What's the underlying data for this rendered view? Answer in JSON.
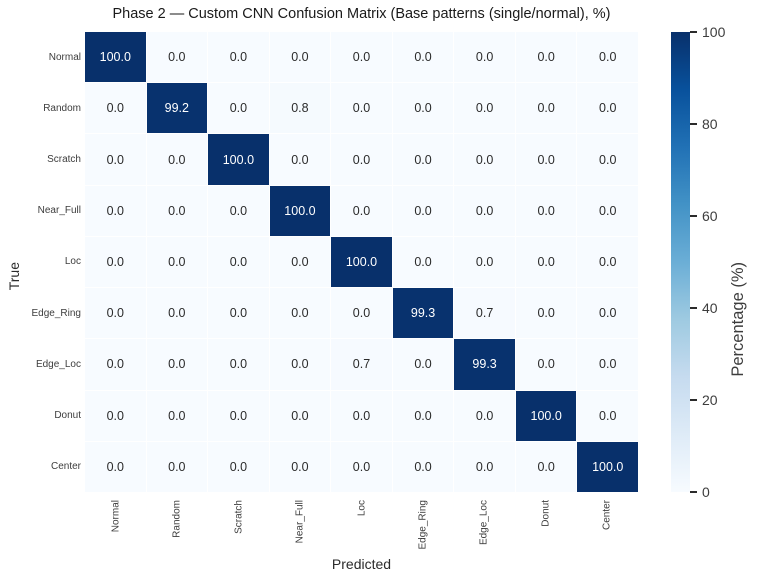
{
  "chart_data": {
    "type": "heatmap",
    "title": "Phase 2 — Custom CNN Confusion Matrix (Base patterns (single/normal), %)",
    "xlabel": "Predicted",
    "ylabel": "True",
    "x_categories": [
      "Normal",
      "Random",
      "Scratch",
      "Near_Full",
      "Loc",
      "Edge_Ring",
      "Edge_Loc",
      "Donut",
      "Center"
    ],
    "y_categories": [
      "Normal",
      "Random",
      "Scratch",
      "Near_Full",
      "Loc",
      "Edge_Ring",
      "Edge_Loc",
      "Donut",
      "Center"
    ],
    "values": [
      [
        100.0,
        0.0,
        0.0,
        0.0,
        0.0,
        0.0,
        0.0,
        0.0,
        0.0
      ],
      [
        0.0,
        99.2,
        0.0,
        0.8,
        0.0,
        0.0,
        0.0,
        0.0,
        0.0
      ],
      [
        0.0,
        0.0,
        100.0,
        0.0,
        0.0,
        0.0,
        0.0,
        0.0,
        0.0
      ],
      [
        0.0,
        0.0,
        0.0,
        100.0,
        0.0,
        0.0,
        0.0,
        0.0,
        0.0
      ],
      [
        0.0,
        0.0,
        0.0,
        0.0,
        100.0,
        0.0,
        0.0,
        0.0,
        0.0
      ],
      [
        0.0,
        0.0,
        0.0,
        0.0,
        0.0,
        99.3,
        0.7,
        0.0,
        0.0
      ],
      [
        0.0,
        0.0,
        0.0,
        0.0,
        0.7,
        0.0,
        99.3,
        0.0,
        0.0
      ],
      [
        0.0,
        0.0,
        0.0,
        0.0,
        0.0,
        0.0,
        0.0,
        100.0,
        0.0
      ],
      [
        0.0,
        0.0,
        0.0,
        0.0,
        0.0,
        0.0,
        0.0,
        0.0,
        100.0
      ]
    ],
    "value_decimals": 1,
    "vmin": 0,
    "vmax": 100,
    "colormap": "Blues",
    "grid_line_color": "#ffffff",
    "colorbar": {
      "label": "Percentage (%)",
      "ticks": [
        0,
        20,
        40,
        60,
        80,
        100
      ]
    },
    "colors": {
      "cmap_low": "#f7fbff",
      "cmap_high": "#08306b",
      "annot_dark": "#2b2b2b",
      "annot_light": "#ffffff"
    }
  }
}
